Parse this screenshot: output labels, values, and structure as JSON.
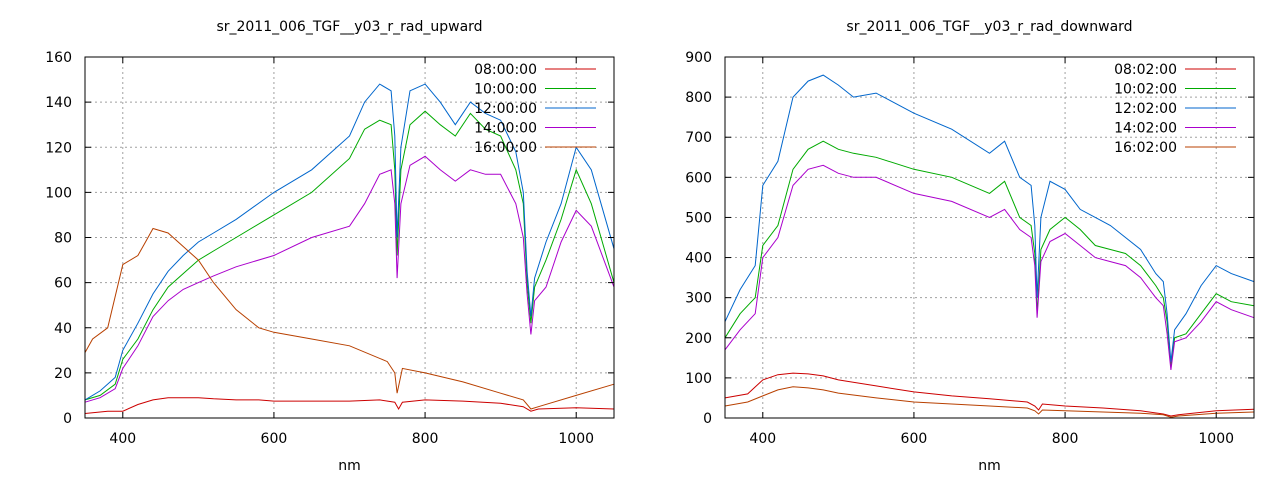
{
  "chart_data": [
    {
      "type": "line",
      "title": "sr_2011_006_TGF__y03_r_rad_upward",
      "xlabel": "nm",
      "ylabel": "",
      "xlim": [
        350,
        1050
      ],
      "ylim": [
        0,
        160
      ],
      "xticks": [
        400,
        600,
        800,
        1000
      ],
      "yticks": [
        0,
        20,
        40,
        60,
        80,
        100,
        120,
        140,
        160
      ],
      "grid": true,
      "legend_position": "top-right",
      "series": [
        {
          "name": "08:00:00",
          "color": "#cc0000",
          "x": [
            350,
            380,
            400,
            420,
            440,
            460,
            480,
            500,
            520,
            550,
            580,
            600,
            650,
            700,
            740,
            760,
            765,
            770,
            800,
            850,
            900,
            930,
            940,
            950,
            1000,
            1050
          ],
          "y": [
            2,
            3,
            3,
            6,
            8,
            9,
            9,
            9,
            8.5,
            8,
            8,
            7.5,
            7.5,
            7.5,
            8,
            7,
            4,
            7,
            8,
            7.5,
            6.5,
            5,
            3,
            4,
            4.5,
            4
          ]
        },
        {
          "name": "10:00:00",
          "color": "#00aa00",
          "x": [
            350,
            370,
            390,
            400,
            420,
            440,
            460,
            480,
            500,
            520,
            550,
            600,
            650,
            700,
            720,
            740,
            755,
            760,
            763,
            768,
            780,
            800,
            820,
            840,
            860,
            880,
            900,
            920,
            930,
            935,
            940,
            945,
            960,
            980,
            1000,
            1020,
            1050
          ],
          "y": [
            8,
            10,
            15,
            26,
            35,
            48,
            58,
            64,
            70,
            74,
            80,
            90,
            100,
            115,
            128,
            132,
            130,
            110,
            72,
            110,
            130,
            136,
            130,
            125,
            135,
            128,
            125,
            110,
            95,
            60,
            42,
            58,
            70,
            88,
            110,
            95,
            60
          ]
        },
        {
          "name": "12:00:00",
          "color": "#0066cc",
          "x": [
            350,
            370,
            390,
            400,
            420,
            440,
            460,
            480,
            500,
            520,
            550,
            600,
            650,
            700,
            720,
            740,
            755,
            760,
            763,
            768,
            780,
            800,
            820,
            840,
            860,
            880,
            900,
            920,
            930,
            935,
            940,
            945,
            960,
            980,
            1000,
            1020,
            1050
          ],
          "y": [
            8,
            12,
            18,
            30,
            42,
            55,
            65,
            72,
            78,
            82,
            88,
            100,
            110,
            125,
            140,
            148,
            145,
            125,
            80,
            120,
            145,
            148,
            140,
            130,
            140,
            135,
            132,
            118,
            100,
            65,
            45,
            62,
            78,
            95,
            120,
            110,
            75
          ]
        },
        {
          "name": "14:00:00",
          "color": "#aa00cc",
          "x": [
            350,
            370,
            390,
            400,
            420,
            440,
            460,
            480,
            500,
            520,
            550,
            600,
            650,
            700,
            720,
            740,
            755,
            760,
            763,
            768,
            780,
            800,
            820,
            840,
            860,
            880,
            900,
            920,
            930,
            935,
            940,
            945,
            960,
            980,
            1000,
            1020,
            1050
          ],
          "y": [
            7,
            9,
            13,
            22,
            32,
            45,
            52,
            57,
            60,
            63,
            67,
            72,
            80,
            85,
            95,
            108,
            110,
            95,
            62,
            95,
            112,
            116,
            110,
            105,
            110,
            108,
            108,
            95,
            80,
            55,
            37,
            52,
            58,
            78,
            92,
            85,
            58
          ]
        },
        {
          "name": "16:00:00",
          "color": "#b84000",
          "x": [
            350,
            360,
            380,
            400,
            420,
            430,
            440,
            460,
            480,
            500,
            520,
            550,
            580,
            600,
            650,
            700,
            750,
            760,
            763,
            770,
            800,
            850,
            900,
            930,
            940,
            950,
            1000,
            1050
          ],
          "y": [
            29,
            35,
            40,
            68,
            72,
            78,
            84,
            82,
            76,
            70,
            60,
            48,
            40,
            38,
            35,
            32,
            25,
            20,
            11,
            22,
            20,
            16,
            11,
            8,
            4,
            5,
            10,
            15
          ]
        }
      ]
    },
    {
      "type": "line",
      "title": "sr_2011_006_TGF__y03_r_rad_downward",
      "xlabel": "nm",
      "ylabel": "",
      "xlim": [
        350,
        1050
      ],
      "ylim": [
        0,
        900
      ],
      "xticks": [
        400,
        600,
        800,
        1000
      ],
      "yticks": [
        0,
        100,
        200,
        300,
        400,
        500,
        600,
        700,
        800,
        900
      ],
      "grid": true,
      "legend_position": "top-right",
      "series": [
        {
          "name": "08:02:00",
          "color": "#cc0000",
          "x": [
            350,
            380,
            400,
            420,
            440,
            460,
            480,
            500,
            550,
            600,
            650,
            700,
            750,
            760,
            765,
            770,
            800,
            850,
            900,
            930,
            940,
            950,
            1000,
            1050
          ],
          "y": [
            50,
            60,
            95,
            108,
            112,
            110,
            105,
            95,
            80,
            65,
            55,
            48,
            40,
            30,
            20,
            35,
            30,
            25,
            18,
            10,
            5,
            8,
            18,
            22
          ]
        },
        {
          "name": "10:02:00",
          "color": "#00aa00",
          "x": [
            350,
            370,
            390,
            400,
            420,
            440,
            460,
            480,
            500,
            520,
            550,
            600,
            650,
            700,
            720,
            740,
            755,
            760,
            763,
            768,
            780,
            800,
            820,
            840,
            860,
            880,
            900,
            920,
            930,
            935,
            940,
            945,
            960,
            980,
            1000,
            1020,
            1050
          ],
          "y": [
            200,
            260,
            300,
            430,
            480,
            620,
            670,
            690,
            670,
            660,
            650,
            620,
            600,
            560,
            590,
            500,
            480,
            410,
            260,
            420,
            470,
            500,
            470,
            430,
            420,
            410,
            380,
            330,
            300,
            240,
            130,
            200,
            210,
            260,
            310,
            290,
            280
          ]
        },
        {
          "name": "12:02:00",
          "color": "#0066cc",
          "x": [
            350,
            370,
            390,
            400,
            420,
            440,
            460,
            480,
            500,
            520,
            550,
            600,
            650,
            700,
            720,
            740,
            755,
            760,
            763,
            768,
            780,
            800,
            820,
            840,
            860,
            880,
            900,
            920,
            930,
            935,
            940,
            945,
            960,
            980,
            1000,
            1020,
            1050
          ],
          "y": [
            240,
            320,
            380,
            580,
            640,
            800,
            840,
            855,
            830,
            800,
            810,
            760,
            720,
            660,
            690,
            600,
            580,
            480,
            300,
            500,
            590,
            570,
            520,
            500,
            480,
            450,
            420,
            360,
            340,
            260,
            140,
            220,
            260,
            330,
            380,
            360,
            340
          ]
        },
        {
          "name": "14:02:00",
          "color": "#aa00cc",
          "x": [
            350,
            370,
            390,
            400,
            420,
            440,
            460,
            480,
            500,
            520,
            550,
            600,
            650,
            700,
            720,
            740,
            755,
            760,
            763,
            768,
            780,
            800,
            820,
            840,
            860,
            880,
            900,
            920,
            930,
            935,
            940,
            945,
            960,
            980,
            1000,
            1020,
            1050
          ],
          "y": [
            170,
            220,
            260,
            400,
            450,
            580,
            620,
            630,
            610,
            600,
            600,
            560,
            540,
            500,
            520,
            470,
            450,
            380,
            250,
            390,
            440,
            460,
            430,
            400,
            390,
            380,
            350,
            300,
            280,
            210,
            120,
            190,
            200,
            240,
            290,
            270,
            250
          ]
        },
        {
          "name": "16:02:00",
          "color": "#b84000",
          "x": [
            350,
            380,
            400,
            420,
            440,
            460,
            480,
            500,
            550,
            600,
            650,
            700,
            750,
            760,
            765,
            770,
            800,
            850,
            900,
            930,
            940,
            950,
            1000,
            1050
          ],
          "y": [
            30,
            40,
            55,
            70,
            78,
            75,
            70,
            62,
            50,
            40,
            35,
            30,
            25,
            18,
            10,
            20,
            18,
            15,
            12,
            8,
            2,
            5,
            12,
            15
          ]
        }
      ]
    }
  ]
}
